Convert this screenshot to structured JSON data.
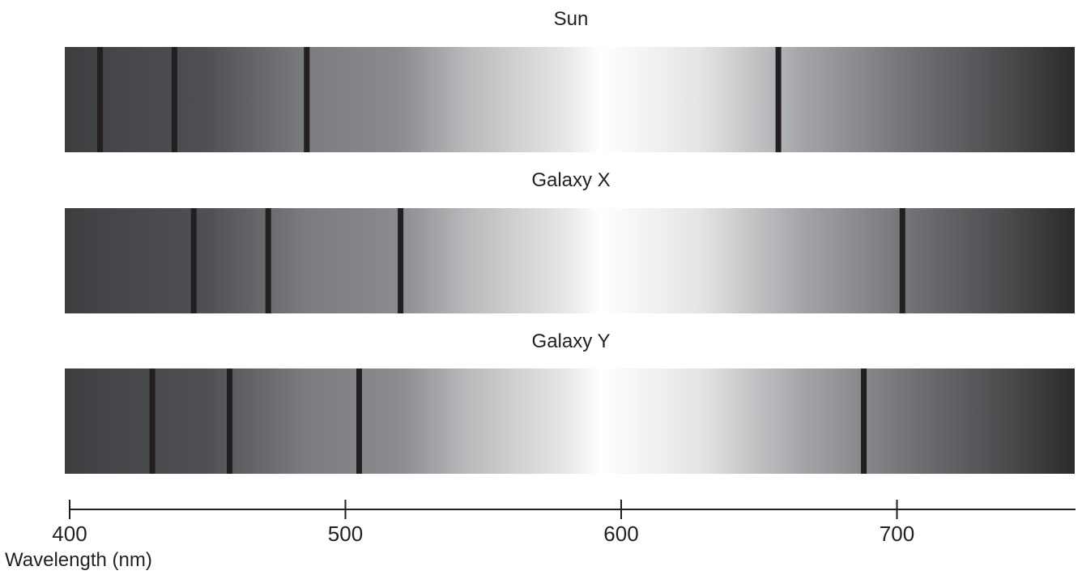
{
  "chart_data": {
    "type": "spectrum",
    "axis": {
      "label": "Wavelength (nm)",
      "ticks": [
        400,
        500,
        600,
        700
      ],
      "range": [
        400,
        765
      ]
    },
    "spectra": [
      {
        "name": "Sun",
        "lines": [
          411,
          438,
          486,
          657
        ]
      },
      {
        "name": "Galaxy X",
        "lines": [
          445,
          472,
          520,
          702
        ]
      },
      {
        "name": "Galaxy Y",
        "lines": [
          430,
          458,
          505,
          688
        ]
      }
    ],
    "colors": {
      "line": "#231f20",
      "edge": "#2a2a2c",
      "mid": "#7f8084",
      "peak": "#ffffff"
    }
  }
}
